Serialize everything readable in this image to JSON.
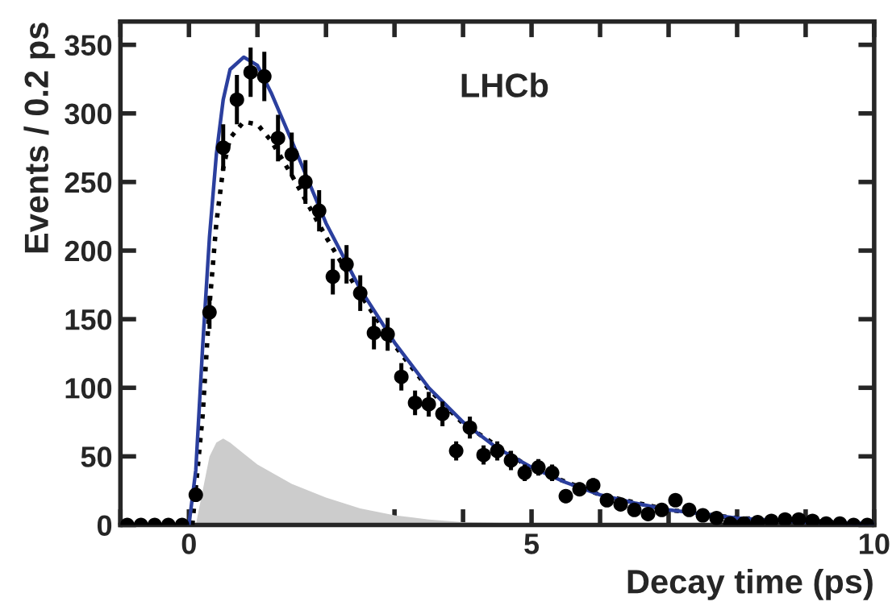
{
  "chart_data": {
    "type": "scatter",
    "xlabel": "Decay time (ps)",
    "ylabel": "Events / 0.2 ps",
    "annotations": [
      "LHCb"
    ],
    "xlim": [
      -1,
      10
    ],
    "ylim": [
      0,
      367
    ],
    "xticks": [
      {
        "value": -1,
        "label": null
      },
      0,
      {
        "value": 1,
        "label": null
      },
      {
        "value": 2,
        "label": null
      },
      {
        "value": 3,
        "label": null
      },
      {
        "value": 4,
        "label": null
      },
      5,
      {
        "value": 6,
        "label": null
      },
      {
        "value": 7,
        "label": null
      },
      {
        "value": 8,
        "label": null
      },
      {
        "value": 9,
        "label": null
      },
      10
    ],
    "yticks": [
      0,
      50,
      100,
      150,
      200,
      250,
      300,
      350
    ],
    "grid": false,
    "legend": false,
    "series": [
      {
        "type": "area",
        "color": "#cccccc",
        "x": [
          0.1,
          0.2,
          0.3,
          0.4,
          0.5,
          0.6,
          0.8,
          1.0,
          1.5,
          2.0,
          2.5,
          3.0,
          3.5,
          4.0,
          5.0,
          6.0
        ],
        "values": [
          0,
          25,
          50,
          60,
          63,
          60,
          52,
          44,
          30,
          20,
          12,
          7,
          4,
          2,
          1,
          0
        ]
      },
      {
        "type": "line",
        "color": "#000000",
        "line_style": "dotted",
        "x": [
          0.05,
          0.2,
          0.3,
          0.4,
          0.5,
          0.6,
          0.8,
          1.0,
          1.2,
          1.5,
          2.0,
          2.5,
          3.0,
          3.5,
          4.0,
          5.0,
          6.0,
          7.0,
          8.0,
          10.0
        ],
        "values": [
          0,
          80,
          160,
          220,
          260,
          282,
          294,
          292,
          280,
          255,
          210,
          168,
          131,
          99,
          74,
          41,
          22,
          11,
          5,
          1
        ]
      },
      {
        "type": "line",
        "color": "#2b3f9e",
        "line_style": "solid",
        "x": [
          0,
          0.1,
          0.2,
          0.3,
          0.4,
          0.5,
          0.6,
          0.8,
          1.0,
          1.2,
          1.5,
          2.0,
          2.5,
          3.0,
          3.5,
          4.0,
          4.5,
          5.0,
          5.5,
          6.0,
          6.5,
          7.0,
          7.5,
          8.0,
          9.0,
          10.0
        ],
        "values": [
          0,
          40,
          130,
          210,
          270,
          310,
          332,
          341,
          335,
          315,
          280,
          220,
          172,
          133,
          100,
          75,
          56,
          42,
          31,
          22,
          16,
          11,
          8,
          5,
          2,
          1
        ]
      },
      {
        "color": "#000000",
        "marker": "circle",
        "x": [
          -0.9,
          -0.7,
          -0.5,
          -0.3,
          -0.1,
          0.1,
          0.3,
          0.5,
          0.7,
          0.9,
          1.1,
          1.3,
          1.5,
          1.7,
          1.9,
          2.1,
          2.3,
          2.5,
          2.7,
          2.9,
          3.1,
          3.3,
          3.5,
          3.7,
          3.9,
          4.1,
          4.3,
          4.5,
          4.7,
          4.9,
          5.1,
          5.3,
          5.5,
          5.7,
          5.9,
          6.1,
          6.3,
          6.5,
          6.7,
          6.9,
          7.1,
          7.3,
          7.5,
          7.7,
          7.9,
          8.1,
          8.3,
          8.5,
          8.7,
          8.9,
          9.1,
          9.3,
          9.5,
          9.7,
          9.9
        ],
        "values": [
          0,
          0,
          0,
          0,
          0,
          22,
          155,
          275,
          310,
          330,
          327,
          282,
          270,
          250,
          229,
          181,
          190,
          169,
          140,
          139,
          108,
          89,
          88,
          81,
          54,
          71,
          51,
          54,
          47,
          38,
          42,
          38,
          21,
          26,
          29,
          18,
          15,
          11,
          8,
          11,
          18,
          11,
          7,
          5,
          1,
          1,
          2,
          3,
          4,
          4,
          3,
          1,
          1,
          0,
          0
        ],
        "errors": [
          null,
          null,
          null,
          null,
          null,
          5,
          12,
          17,
          18,
          18,
          18,
          17,
          16,
          16,
          15,
          13,
          14,
          13,
          12,
          12,
          10,
          9,
          9,
          9,
          7,
          8,
          7,
          7,
          7,
          6,
          6,
          6,
          5,
          5,
          5,
          4,
          4,
          null,
          null,
          null,
          4,
          null,
          null,
          null,
          null,
          null,
          null,
          null,
          null,
          null,
          null,
          null,
          null,
          null,
          null
        ]
      }
    ]
  }
}
